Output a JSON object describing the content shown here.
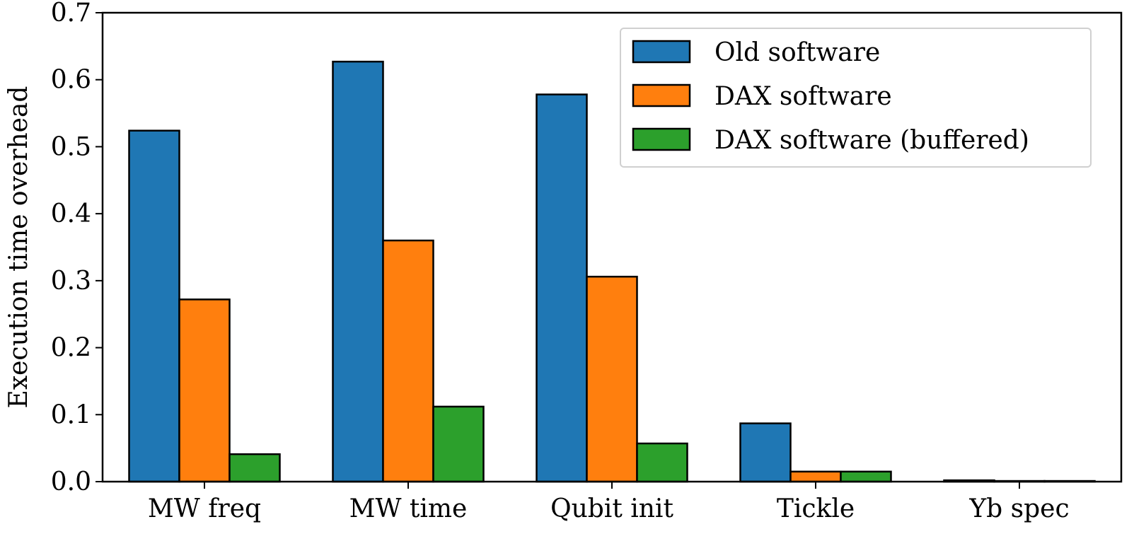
{
  "chart_data": {
    "type": "bar",
    "title": "",
    "xlabel": "",
    "ylabel": "Execution time overhead",
    "ylim": [
      0,
      0.7
    ],
    "yticks": [
      "0.0",
      "0.1",
      "0.2",
      "0.3",
      "0.4",
      "0.5",
      "0.6",
      "0.7"
    ],
    "categories": [
      "MW freq",
      "MW time",
      "Qubit init",
      "Tickle",
      "Yb spec"
    ],
    "series": [
      {
        "name": "Old software",
        "color": "#1f77b4",
        "values": [
          0.524,
          0.627,
          0.578,
          0.087,
          0.002
        ]
      },
      {
        "name": "DAX software",
        "color": "#ff7f0e",
        "values": [
          0.272,
          0.36,
          0.306,
          0.015,
          0.001
        ]
      },
      {
        "name": "DAX software (buffered)",
        "color": "#2ca02c",
        "values": [
          0.041,
          0.112,
          0.057,
          0.015,
          0.001
        ]
      }
    ],
    "legend_position": "top-right",
    "grid": false
  }
}
